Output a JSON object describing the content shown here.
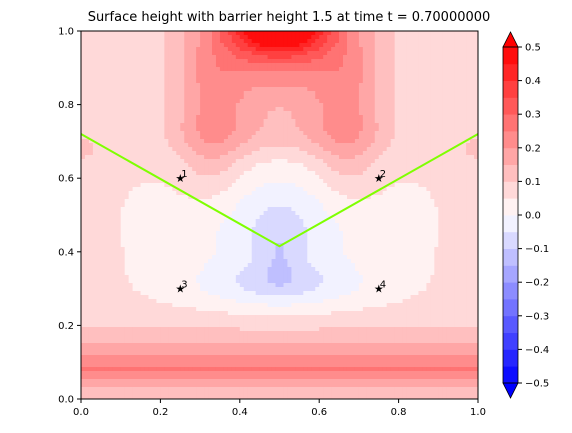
{
  "title": "Surface height with barrier height 1.5 at time t =     0.70000000",
  "chart_data": {
    "type": "heatmap",
    "title": "Surface height with barrier height 1.5 at time t =     0.70000000",
    "xlim": [
      0.0,
      1.0
    ],
    "ylim": [
      0.0,
      1.0
    ],
    "x_ticks": [
      "0.0",
      "0.2",
      "0.4",
      "0.6",
      "0.8",
      "1.0"
    ],
    "y_ticks": [
      "0.0",
      "0.2",
      "0.4",
      "0.6",
      "0.8",
      "1.0"
    ],
    "colorbar": {
      "range": [
        -0.5,
        0.5
      ],
      "levels": [
        -0.5,
        -0.45,
        -0.4,
        -0.35,
        -0.3,
        -0.25,
        -0.2,
        -0.15,
        -0.1,
        -0.05,
        0.0,
        0.05,
        0.1,
        0.15,
        0.2,
        0.25,
        0.3,
        0.35,
        0.4,
        0.45,
        0.5
      ],
      "tick_labels": [
        "−0.5",
        "−0.4",
        "−0.3",
        "−0.2",
        "−0.1",
        "0.0",
        "0.1",
        "0.2",
        "0.3",
        "0.4",
        "0.5"
      ],
      "extend": "both",
      "colormap": "bwr"
    },
    "barrier": {
      "points": [
        [
          0.0,
          0.72
        ],
        [
          0.5,
          0.415
        ],
        [
          1.0,
          0.72
        ]
      ],
      "color": "#7fff00"
    },
    "gauges": [
      {
        "label": "1",
        "x": 0.25,
        "y": 0.6
      },
      {
        "label": "2",
        "x": 0.75,
        "y": 0.6
      },
      {
        "label": "3",
        "x": 0.25,
        "y": 0.3
      },
      {
        "label": "4",
        "x": 0.75,
        "y": 0.3
      }
    ]
  }
}
